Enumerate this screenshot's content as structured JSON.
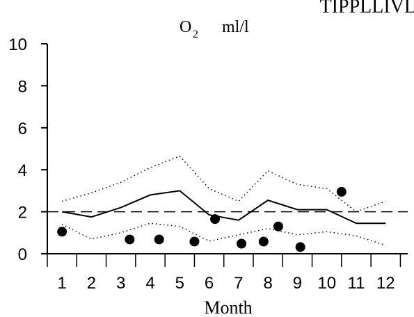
{
  "chart_data": {
    "type": "line",
    "title": "O2   ml/l",
    "title_main": "O",
    "title_sub": "2",
    "title_unit": "ml/l",
    "corner_text": "TIPPLLIVL",
    "xlabel": "Month",
    "ylabel": "",
    "ylim": [
      0,
      10
    ],
    "yticks": [
      0,
      2,
      4,
      6,
      8,
      10
    ],
    "xticks": [
      1,
      2,
      3,
      4,
      5,
      6,
      7,
      8,
      9,
      10,
      11,
      12
    ],
    "xlim": [
      0.5,
      12.75
    ],
    "grid": false,
    "reference_line": {
      "y": 2.0,
      "style": "dashed"
    },
    "series": [
      {
        "style": "solid",
        "x": [
          1,
          2,
          3,
          4,
          5,
          6,
          7,
          8,
          9,
          10,
          11,
          12
        ],
        "y": [
          2.0,
          1.75,
          2.2,
          2.8,
          3.0,
          1.85,
          1.6,
          2.55,
          2.1,
          2.1,
          1.45,
          1.45
        ]
      },
      {
        "style": "dotted",
        "x": [
          1,
          2,
          3,
          4,
          5,
          6,
          7,
          8,
          9,
          10,
          11,
          12
        ],
        "y": [
          2.5,
          2.9,
          3.4,
          4.1,
          4.65,
          3.1,
          2.5,
          3.95,
          3.3,
          3.1,
          2.0,
          2.5
        ]
      },
      {
        "style": "dotted",
        "x": [
          1,
          2,
          3,
          4,
          5,
          6,
          7,
          8,
          9,
          10,
          11,
          12
        ],
        "y": [
          1.4,
          0.7,
          1.0,
          1.45,
          1.3,
          0.6,
          0.9,
          1.2,
          0.9,
          1.05,
          0.85,
          0.4
        ]
      },
      {
        "style": "points",
        "x": [
          1,
          3.3,
          4.3,
          5.5,
          6.2,
          7.1,
          7.85,
          8.35,
          9.1,
          10.5
        ],
        "y": [
          1.05,
          0.68,
          0.68,
          0.58,
          1.65,
          0.48,
          0.58,
          1.3,
          0.32,
          2.95
        ]
      }
    ]
  }
}
